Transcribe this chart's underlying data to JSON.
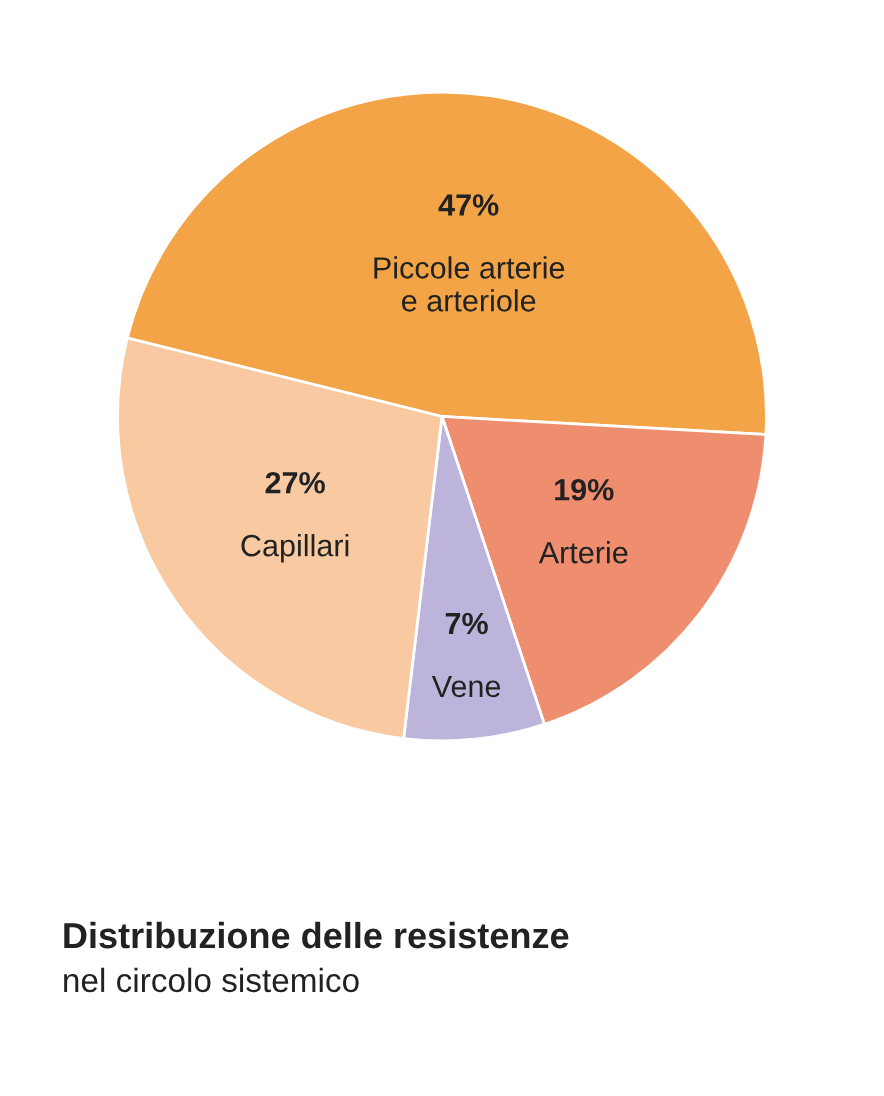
{
  "chart_data": {
    "type": "pie",
    "title": "Distribuzione delle resistenze",
    "subtitle": "nel circolo sistemico",
    "categories": [
      "Piccole arterie\ne arteriole",
      "Arterie",
      "Vene",
      "Capillari"
    ],
    "values": [
      47,
      19,
      7,
      27
    ],
    "value_labels": [
      "47%",
      "19%",
      "7%",
      "27%"
    ],
    "colors": [
      "#f2a446",
      "#ee8e6e",
      "#bcb4da",
      "#f9caa2"
    ],
    "legend": false
  }
}
